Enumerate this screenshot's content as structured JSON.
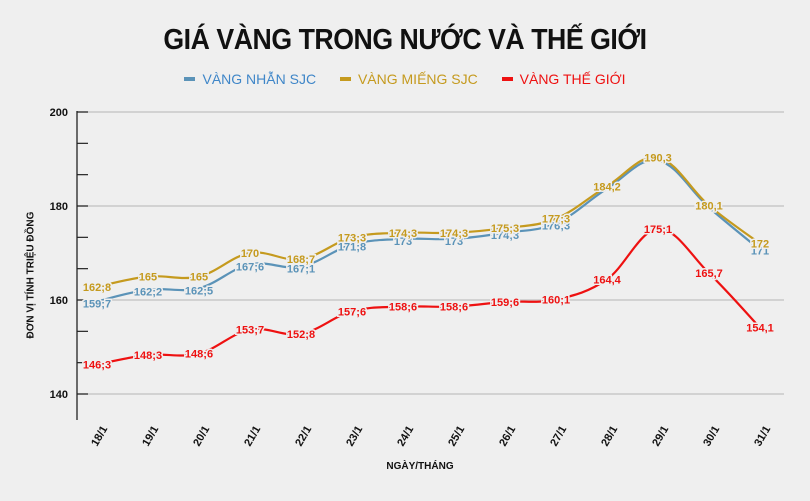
{
  "title": "GIÁ VÀNG TRONG NƯỚC VÀ THẾ GIỚI",
  "legend": [
    {
      "label": "VÀNG NHẪN SJC",
      "color": "#5b93b8"
    },
    {
      "label": "VÀNG MIẾNG SJC",
      "color": "#c59a1e"
    },
    {
      "label": "VÀNG THẾ GIỚI",
      "color": "#ee1111"
    }
  ],
  "axes": {
    "ylabel": "ĐƠN VỊ TÍNH TRIỆU ĐỒNG",
    "xlabel": "NGÀY/THÁNG"
  },
  "chart_data": {
    "type": "line",
    "title": "GIÁ VÀNG TRONG NƯỚC VÀ THẾ GIỚI",
    "xlabel": "NGÀY/THÁNG",
    "ylabel": "ĐƠN VỊ TÍNH TRIỆU ĐỒNG",
    "ylim": [
      140,
      200
    ],
    "yticks": [
      140,
      160,
      180,
      200
    ],
    "grid": true,
    "legend_position": "top",
    "categories": [
      "18/1",
      "19/1",
      "20/1",
      "21/1",
      "22/1",
      "23/1",
      "24/1",
      "25/1",
      "26/1",
      "27/1",
      "28/1",
      "29/1",
      "30/1",
      "31/1"
    ],
    "series": [
      {
        "name": "VÀNG NHẪN SJC",
        "color": "#5b93b8",
        "values": [
          159.7,
          162.2,
          162.5,
          167.6,
          167.1,
          171.8,
          173,
          173,
          174.3,
          176.3,
          184,
          190,
          180,
          171
        ],
        "labels": [
          "159;7",
          "162;2",
          "162;5",
          "167;6",
          "167;1",
          "171;8",
          "173",
          "173",
          "174;3",
          "176;3",
          "",
          "",
          "",
          "171"
        ]
      },
      {
        "name": "VÀNG MIẾNG SJC",
        "color": "#c59a1e",
        "values": [
          162.8,
          165,
          165,
          170,
          168.7,
          173.3,
          174.3,
          174.3,
          175.3,
          177.3,
          184.2,
          190.3,
          180.1,
          172
        ],
        "labels": [
          "162;8",
          "165",
          "165",
          "170",
          "168;7",
          "173;3",
          "174;3",
          "174;3",
          "175;3",
          "177;3",
          "184,2",
          "190,3",
          "180,1",
          "172"
        ]
      },
      {
        "name": "VÀNG THẾ GIỚI",
        "color": "#ee1111",
        "values": [
          146.3,
          148.3,
          148.6,
          153.7,
          152.8,
          157.6,
          158.6,
          158.6,
          159.6,
          160.1,
          164.4,
          175.1,
          165.7,
          154.1
        ],
        "labels": [
          "146;3",
          "148;3",
          "148;6",
          "153;7",
          "152;8",
          "157;6",
          "158;6",
          "158;6",
          "159;6",
          "160;1",
          "164,4",
          "175;1",
          "165,7",
          "154,1"
        ]
      }
    ]
  }
}
